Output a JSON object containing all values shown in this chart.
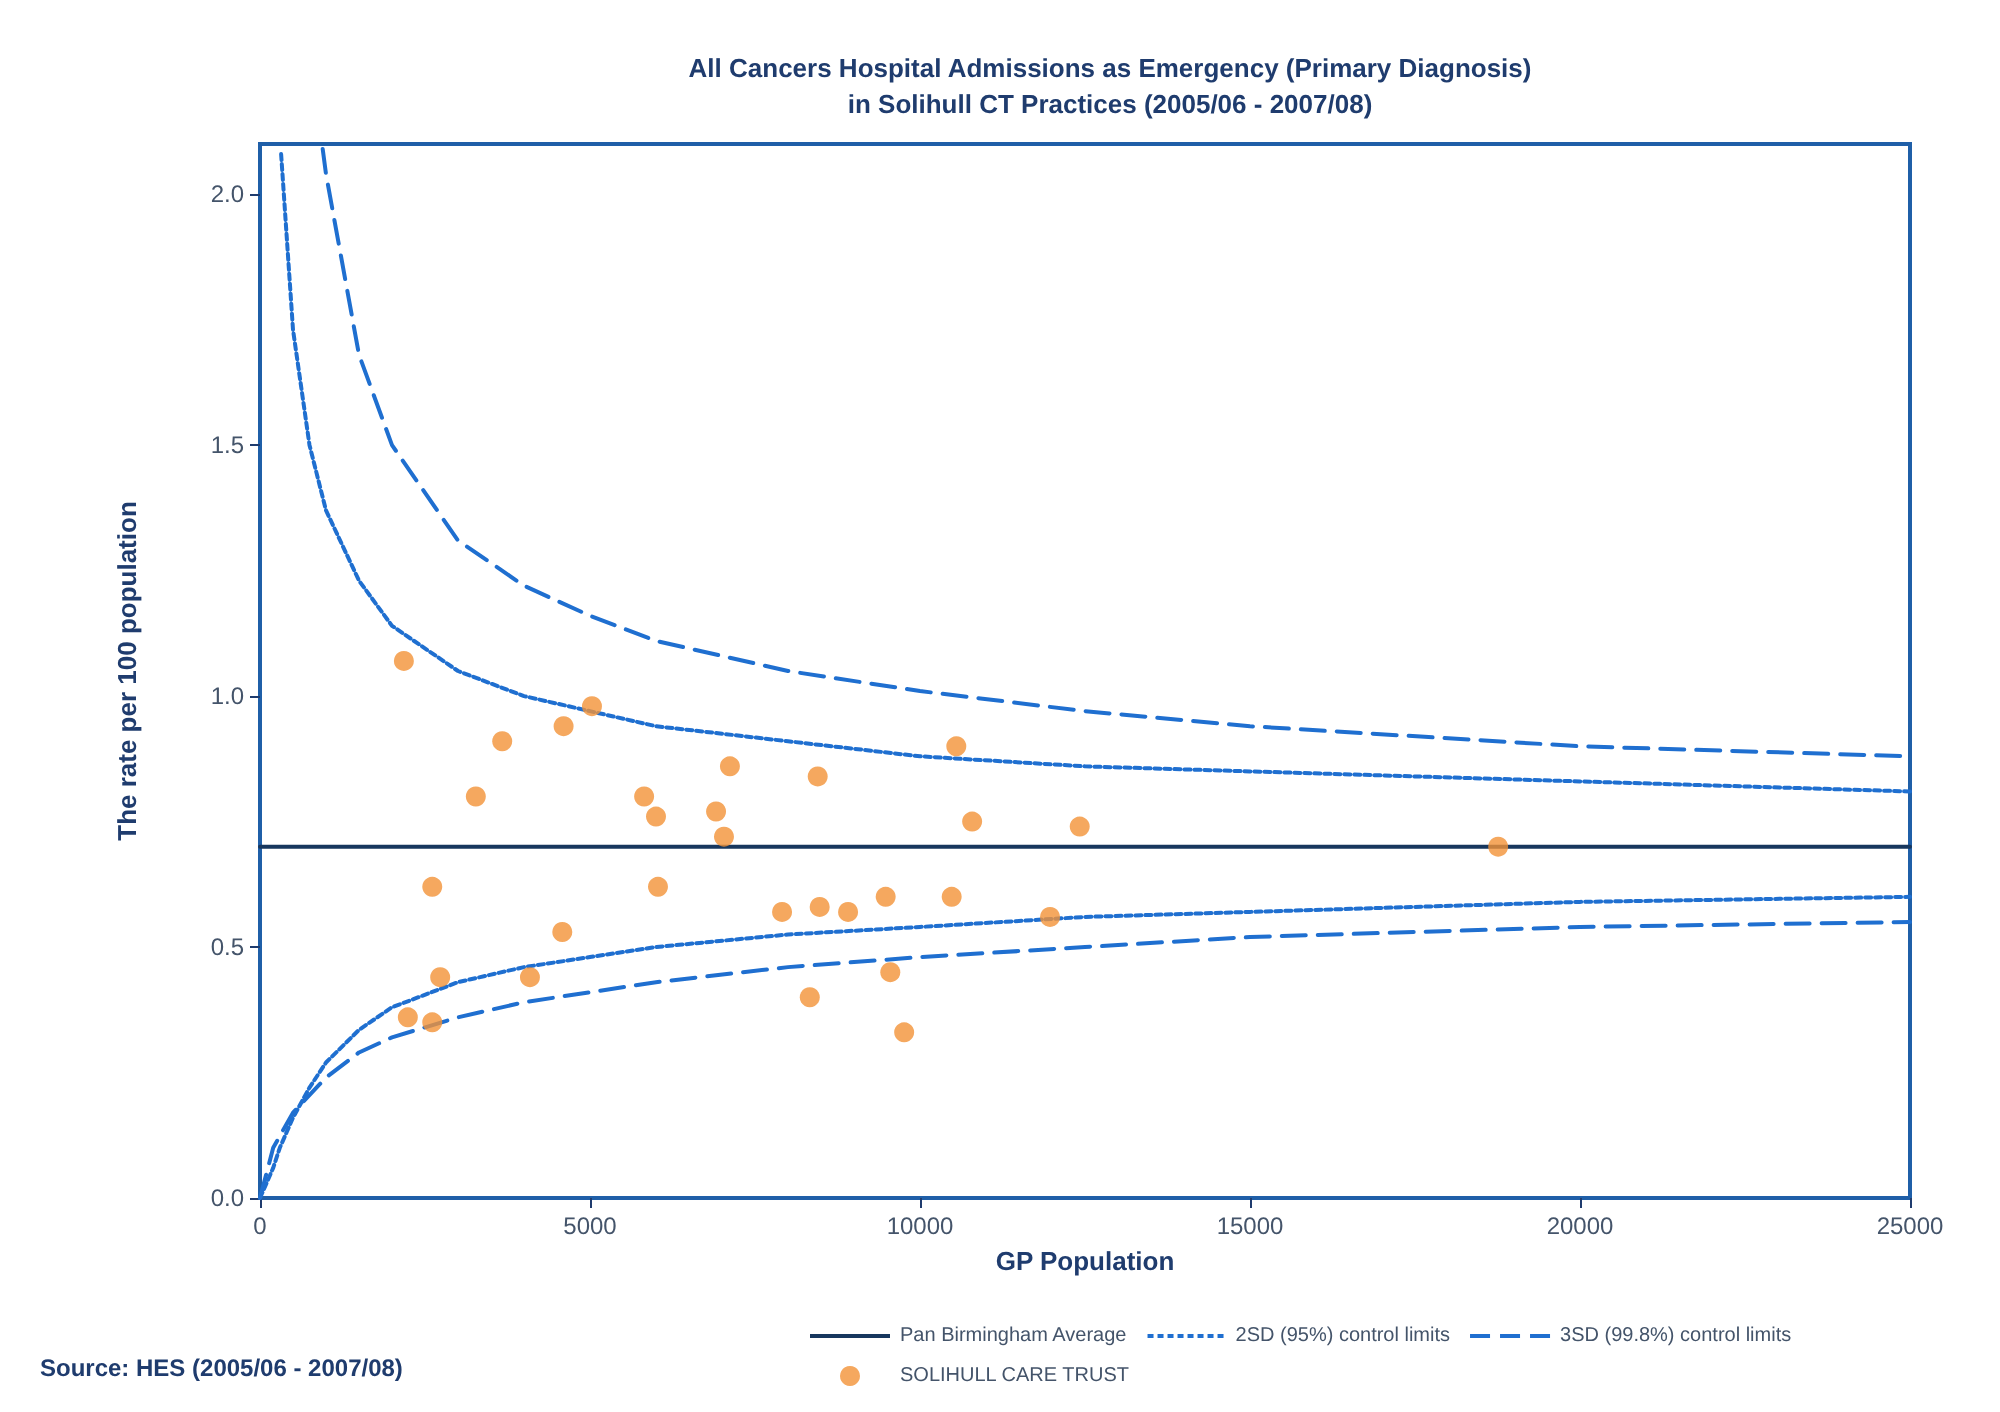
{
  "chart_data": {
    "type": "scatter",
    "title": "All Cancers Hospital Admissions as Emergency (Primary Diagnosis)\nin Solihull CT Practices (2005/06 - 2007/08)",
    "xlabel": "GP Population",
    "ylabel": "The rate per 100 population",
    "xlim": [
      0,
      25000
    ],
    "xticks": [
      0,
      5000,
      10000,
      15000,
      20000,
      25000
    ],
    "ylim": [
      0,
      2.1
    ],
    "yticks": [
      {
        "value": 0,
        "label": "0.0"
      },
      {
        "value": 0.5,
        "label": "0.5"
      },
      {
        "value": 1,
        "label": "1.0"
      },
      {
        "value": 1.5,
        "label": "1.5"
      },
      {
        "value": 2,
        "label": "2.0"
      }
    ],
    "grid": false,
    "legend": "bottom",
    "annotations": [
      "Source: HES (2005/06 - 2007/08)"
    ],
    "series": [
      {
        "name": "Pan Birmingham Average",
        "type": "line",
        "line_style": "solid",
        "marker": "none",
        "color": "#17375e",
        "x": [
          0,
          25000
        ],
        "values": [
          0.7,
          0.7
        ]
      },
      {
        "name": "2SD (95%) control limits",
        "type": "line",
        "line_style": "dotted",
        "marker": "none",
        "color": "#1f6fd0",
        "x": [
          320,
          500,
          750,
          1000,
          1500,
          2000,
          3000,
          4000,
          5000,
          6000,
          8000,
          10000,
          12500,
          15000,
          20000,
          25000,
          null,
          0,
          100,
          200,
          300,
          500,
          750,
          1000,
          1500,
          2000,
          3000,
          4000,
          5000,
          6000,
          8000,
          10000,
          12500,
          15000,
          20000,
          25000
        ],
        "values": [
          2.08,
          1.73,
          1.5,
          1.37,
          1.23,
          1.14,
          1.05,
          1.0,
          0.97,
          0.94,
          0.91,
          0.88,
          0.86,
          0.85,
          0.83,
          0.81,
          null,
          0,
          0.03,
          0.06,
          0.1,
          0.16,
          0.22,
          0.27,
          0.335,
          0.38,
          0.43,
          0.46,
          0.48,
          0.5,
          0.525,
          0.54,
          0.56,
          0.57,
          0.59,
          0.6
        ]
      },
      {
        "name": "3SD (99.8%) control limits",
        "type": "line",
        "line_style": "dashed",
        "marker": "none",
        "color": "#1f6fd0",
        "x": [
          950,
          1000,
          1500,
          2000,
          3000,
          4000,
          5000,
          6000,
          8000,
          10000,
          12500,
          15000,
          20000,
          25000,
          null,
          0,
          100,
          200,
          500,
          1000,
          1500,
          2000,
          3000,
          4000,
          5000,
          6000,
          8000,
          10000,
          12500,
          15000,
          20000,
          25000
        ],
        "values": [
          2.09,
          2.04,
          1.68,
          1.5,
          1.31,
          1.22,
          1.16,
          1.11,
          1.05,
          1.01,
          0.97,
          0.94,
          0.9,
          0.88,
          null,
          0,
          0.05,
          0.1,
          0.17,
          0.24,
          0.29,
          0.32,
          0.36,
          0.39,
          0.41,
          0.43,
          0.46,
          0.48,
          0.5,
          0.52,
          0.54,
          0.55
        ]
      },
      {
        "name": "SOLIHULL CARE TRUST",
        "marker": "circle",
        "color": "#f39237",
        "x": [
          2180,
          3270,
          3670,
          4600,
          5030,
          5820,
          6000,
          7030,
          6910,
          7120,
          8450,
          10550,
          10790,
          12420,
          18760,
          2610,
          6030,
          4580,
          2730,
          4090,
          2240,
          2610,
          7910,
          8480,
          8910,
          9480,
          10480,
          11970,
          8330,
          9550,
          9760
        ],
        "values": [
          1.07,
          0.8,
          0.91,
          0.94,
          0.98,
          0.8,
          0.76,
          0.72,
          0.77,
          0.86,
          0.84,
          0.9,
          0.75,
          0.74,
          0.7,
          0.62,
          0.62,
          0.53,
          0.44,
          0.44,
          0.36,
          0.35,
          0.57,
          0.58,
          0.57,
          0.6,
          0.6,
          0.56,
          0.4,
          0.45,
          0.33
        ]
      }
    ]
  }
}
